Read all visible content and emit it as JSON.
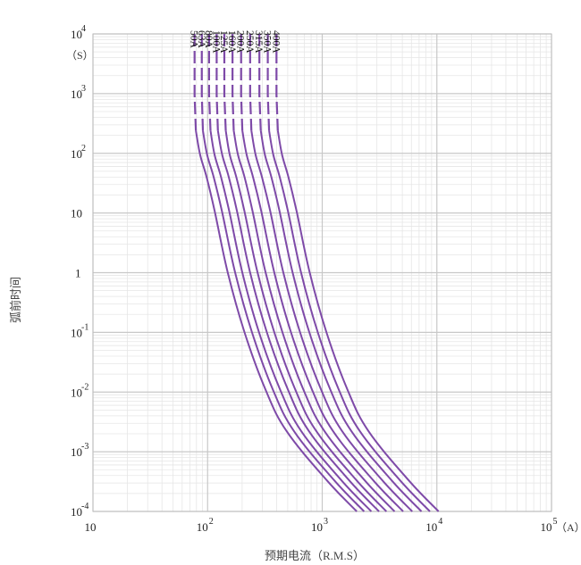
{
  "chart_data": {
    "type": "line",
    "title": "",
    "xlabel": "预期电流（R.M.S）",
    "ylabel": "弧前时间",
    "x_unit": "（A）",
    "y_unit": "（S）",
    "xscale": "log",
    "yscale": "log",
    "xlim": [
      10,
      100000
    ],
    "ylim": [
      0.0001,
      10000
    ],
    "grid": true,
    "x_ticks": [
      {
        "base": "10",
        "exp": ""
      },
      {
        "base": "10",
        "exp": "2"
      },
      {
        "base": "10",
        "exp": "3"
      },
      {
        "base": "10",
        "exp": "4"
      },
      {
        "base": "10",
        "exp": "5"
      }
    ],
    "y_ticks": [
      {
        "base": "10",
        "exp": "-4"
      },
      {
        "base": "10",
        "exp": "-3"
      },
      {
        "base": "10",
        "exp": "-2"
      },
      {
        "base": "10",
        "exp": "-1"
      },
      {
        "base": "1",
        "exp": ""
      },
      {
        "base": "10",
        "exp": ""
      },
      {
        "base": "10",
        "exp": "2"
      },
      {
        "base": "10",
        "exp": "3"
      },
      {
        "base": "10",
        "exp": "4"
      }
    ],
    "line_color": "#7e4aa8",
    "series": [
      {
        "name": "50A",
        "points": [
          [
            77,
            10000
          ],
          [
            77,
            950
          ],
          [
            79,
            240
          ],
          [
            86,
            95
          ],
          [
            98,
            40
          ],
          [
            115,
            11
          ],
          [
            150,
            1.0
          ],
          [
            210,
            0.1
          ],
          [
            320,
            0.011
          ],
          [
            490,
            0.0022
          ],
          [
            1100,
            0.00033
          ],
          [
            2000,
            0.0001
          ]
        ]
      },
      {
        "name": "63A",
        "points": [
          [
            89,
            10000
          ],
          [
            89,
            950
          ],
          [
            91,
            240
          ],
          [
            99,
            95
          ],
          [
            113,
            40
          ],
          [
            133,
            11
          ],
          [
            174,
            1.0
          ],
          [
            244,
            0.1
          ],
          [
            371,
            0.011
          ],
          [
            568,
            0.0022
          ],
          [
            1276,
            0.00033
          ],
          [
            2320,
            0.0001
          ]
        ]
      },
      {
        "name": "80A",
        "points": [
          [
            103,
            10000
          ],
          [
            103,
            950
          ],
          [
            106,
            240
          ],
          [
            115,
            95
          ],
          [
            131,
            40
          ],
          [
            154,
            11
          ],
          [
            201,
            1.0
          ],
          [
            281,
            0.1
          ],
          [
            429,
            0.011
          ],
          [
            657,
            0.0022
          ],
          [
            1474,
            0.00033
          ],
          [
            2680,
            0.0001
          ]
        ]
      },
      {
        "name": "100A",
        "points": [
          [
            120,
            10000
          ],
          [
            120,
            950
          ],
          [
            123,
            240
          ],
          [
            134,
            95
          ],
          [
            153,
            40
          ],
          [
            180,
            11
          ],
          [
            235,
            1.0
          ],
          [
            329,
            0.1
          ],
          [
            502,
            0.011
          ],
          [
            767,
            0.0022
          ],
          [
            1722,
            0.00033
          ],
          [
            3130,
            0.0001
          ]
        ]
      },
      {
        "name": "125A",
        "points": [
          [
            140,
            10000
          ],
          [
            140,
            950
          ],
          [
            144,
            240
          ],
          [
            156,
            95
          ],
          [
            178,
            40
          ],
          [
            209,
            11
          ],
          [
            273,
            1.0
          ],
          [
            382,
            0.1
          ],
          [
            582,
            0.011
          ],
          [
            890,
            0.0022
          ],
          [
            1998,
            0.00033
          ],
          [
            3630,
            0.0001
          ]
        ]
      },
      {
        "name": "160A",
        "points": [
          [
            165,
            10000
          ],
          [
            165,
            950
          ],
          [
            169,
            240
          ],
          [
            184,
            95
          ],
          [
            210,
            40
          ],
          [
            246,
            11
          ],
          [
            321,
            1.0
          ],
          [
            450,
            0.1
          ],
          [
            685,
            0.011
          ],
          [
            1048,
            0.0022
          ],
          [
            2352,
            0.00033
          ],
          [
            4280,
            0.0001
          ]
        ]
      },
      {
        "name": "200A",
        "points": [
          [
            196,
            10000
          ],
          [
            196,
            950
          ],
          [
            201,
            240
          ],
          [
            219,
            95
          ],
          [
            249,
            40
          ],
          [
            293,
            11
          ],
          [
            382,
            1.0
          ],
          [
            534,
            0.1
          ],
          [
            814,
            0.011
          ],
          [
            1245,
            0.0022
          ],
          [
            2794,
            0.00033
          ],
          [
            5080,
            0.0001
          ]
        ]
      },
      {
        "name": "250A",
        "points": [
          [
            235,
            10000
          ],
          [
            235,
            950
          ],
          [
            241,
            240
          ],
          [
            262,
            95
          ],
          [
            298,
            40
          ],
          [
            351,
            11
          ],
          [
            458,
            1.0
          ],
          [
            641,
            0.1
          ],
          [
            977,
            0.011
          ],
          [
            1494,
            0.0022
          ],
          [
            3353,
            0.00033
          ],
          [
            6100,
            0.0001
          ]
        ]
      },
      {
        "name": "315A",
        "points": [
          [
            283,
            10000
          ],
          [
            283,
            950
          ],
          [
            291,
            240
          ],
          [
            316,
            95
          ],
          [
            360,
            40
          ],
          [
            423,
            11
          ],
          [
            552,
            1.0
          ],
          [
            772,
            0.1
          ],
          [
            1176,
            0.011
          ],
          [
            1799,
            0.0022
          ],
          [
            4038,
            0.00033
          ],
          [
            7340,
            0.0001
          ]
        ]
      },
      {
        "name": "350A",
        "points": [
          [
            335,
            10000
          ],
          [
            335,
            950
          ],
          [
            344,
            240
          ],
          [
            374,
            95
          ],
          [
            426,
            40
          ],
          [
            501,
            11
          ],
          [
            654,
            1.0
          ],
          [
            915,
            0.1
          ],
          [
            1394,
            0.011
          ],
          [
            2132,
            0.0022
          ],
          [
            4785,
            0.00033
          ],
          [
            8700,
            0.0001
          ]
        ]
      },
      {
        "name": "400A",
        "points": [
          [
            399,
            10000
          ],
          [
            399,
            950
          ],
          [
            410,
            240
          ],
          [
            446,
            95
          ],
          [
            507,
            40
          ],
          [
            596,
            11
          ],
          [
            778,
            1.0
          ],
          [
            1089,
            0.1
          ],
          [
            1659,
            0.011
          ],
          [
            2537,
            0.0022
          ],
          [
            5694,
            0.00033
          ],
          [
            10350,
            0.0001
          ]
        ]
      }
    ]
  }
}
